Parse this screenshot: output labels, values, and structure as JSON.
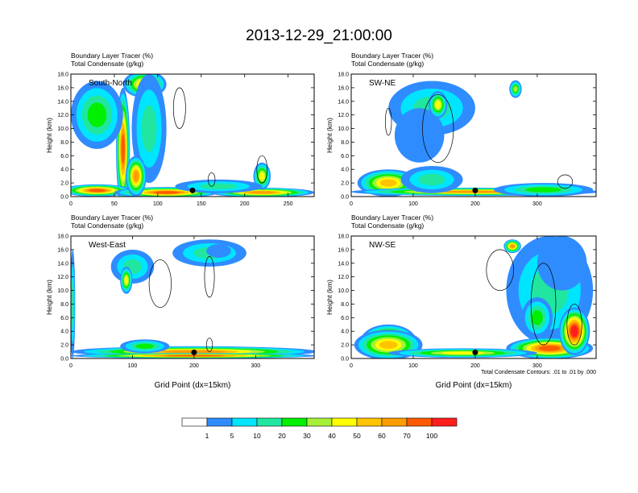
{
  "title": "2013-12-29_21:00:00",
  "colors": {
    "levels": [
      "1",
      "5",
      "10",
      "20",
      "30",
      "40",
      "50",
      "60",
      "70",
      "100"
    ],
    "palette": [
      "#ffffff",
      "#2f8cff",
      "#00e5ff",
      "#20e6a0",
      "#00f000",
      "#a6f03a",
      "#ffff00",
      "#ffc400",
      "#ff9c00",
      "#ff5a00",
      "#ff1e1e"
    ]
  },
  "footnote": "Total Condensate Contours: .01 to .01 by .000",
  "chart_data": [
    {
      "type": "heatmap",
      "subtitle1": "Boundary Layer Tracer    (%)",
      "subtitle2": "Total Condensate    (g/kg)",
      "panel_label": "South-North",
      "ylabel": "Height (km)",
      "xlabel": "",
      "xlim": [
        0,
        280
      ],
      "ylim": [
        0,
        18
      ],
      "xticks": [
        0,
        50,
        100,
        150,
        200,
        250
      ],
      "yticks": [
        "0.0",
        "2.0",
        "4.0",
        "6.0",
        "8.0",
        "10.0",
        "12.0",
        "14.0",
        "16.0",
        "18.0"
      ],
      "marker_x": 140,
      "blobs": [
        {
          "x": 60,
          "y": 7,
          "rx": 8,
          "ry": 9,
          "level": 9
        },
        {
          "x": 30,
          "y": 0.9,
          "rx": 40,
          "ry": 0.9,
          "level": 9
        },
        {
          "x": 110,
          "y": 0.6,
          "rx": 60,
          "ry": 0.8,
          "level": 9
        },
        {
          "x": 220,
          "y": 0.6,
          "rx": 60,
          "ry": 0.7,
          "level": 8
        },
        {
          "x": 85,
          "y": 16.5,
          "rx": 25,
          "ry": 2,
          "level": 7
        },
        {
          "x": 30,
          "y": 12,
          "rx": 30,
          "ry": 5,
          "level": 4
        },
        {
          "x": 90,
          "y": 10,
          "rx": 20,
          "ry": 8,
          "level": 3
        },
        {
          "x": 75,
          "y": 3,
          "rx": 12,
          "ry": 3,
          "level": 8
        },
        {
          "x": 220,
          "y": 3,
          "rx": 10,
          "ry": 2,
          "level": 6
        },
        {
          "x": 170,
          "y": 1.5,
          "rx": 50,
          "ry": 1,
          "level": 3
        }
      ],
      "contours": [
        {
          "x": 125,
          "y": 13,
          "rx": 7,
          "ry": 3
        },
        {
          "x": 162,
          "y": 2.5,
          "rx": 4,
          "ry": 1
        },
        {
          "x": 220,
          "y": 4,
          "rx": 6,
          "ry": 2
        }
      ]
    },
    {
      "type": "heatmap",
      "subtitle1": "Boundary Layer Tracer    (%)",
      "subtitle2": "Total Condensate    (g/kg)",
      "panel_label": "SW-NE",
      "ylabel": "Height (km)",
      "xlabel": "",
      "xlim": [
        0,
        395
      ],
      "ylim": [
        0,
        18
      ],
      "xticks": [
        0,
        100,
        200,
        300
      ],
      "yticks": [
        "0.0",
        "2.0",
        "4.0",
        "6.0",
        "8.0",
        "10.0",
        "12.0",
        "14.0",
        "16.0",
        "18.0"
      ],
      "marker_x": 200,
      "blobs": [
        {
          "x": 130,
          "y": 13,
          "rx": 70,
          "ry": 4,
          "level": 3
        },
        {
          "x": 110,
          "y": 9,
          "rx": 40,
          "ry": 4,
          "level": 1
        },
        {
          "x": 60,
          "y": 2,
          "rx": 50,
          "ry": 2,
          "level": 7
        },
        {
          "x": 200,
          "y": 0.7,
          "rx": 200,
          "ry": 0.6,
          "level": 8
        },
        {
          "x": 310,
          "y": 1,
          "rx": 80,
          "ry": 1,
          "level": 4
        },
        {
          "x": 265,
          "y": 15.8,
          "rx": 10,
          "ry": 1.3,
          "level": 5
        },
        {
          "x": 130,
          "y": 2.5,
          "rx": 50,
          "ry": 2,
          "level": 3
        },
        {
          "x": 140,
          "y": 13.5,
          "rx": 15,
          "ry": 2,
          "level": 6
        }
      ],
      "contours": [
        {
          "x": 60,
          "y": 11,
          "rx": 5,
          "ry": 2
        },
        {
          "x": 140,
          "y": 10,
          "rx": 25,
          "ry": 5
        },
        {
          "x": 345,
          "y": 2.2,
          "rx": 12,
          "ry": 1
        }
      ]
    },
    {
      "type": "heatmap",
      "subtitle1": "Boundary Layer Tracer    (%)",
      "subtitle2": "Total Condensate    (g/kg)",
      "panel_label": "West-East",
      "ylabel": "Height (km)",
      "xlabel": "Grid Point (dx=15km)",
      "xlim": [
        0,
        395
      ],
      "ylim": [
        0,
        18
      ],
      "xticks": [
        0,
        100,
        200,
        300
      ],
      "yticks": [
        "0.0",
        "2.0",
        "4.0",
        "6.0",
        "8.0",
        "10.0",
        "12.0",
        "14.0",
        "16.0",
        "18.0"
      ],
      "marker_x": 200,
      "blobs": [
        {
          "x": 100,
          "y": 13.5,
          "rx": 35,
          "ry": 2.5,
          "level": 3
        },
        {
          "x": 225,
          "y": 15.5,
          "rx": 60,
          "ry": 2,
          "level": 3
        },
        {
          "x": 200,
          "y": 1,
          "rx": 200,
          "ry": 0.8,
          "level": 8
        },
        {
          "x": 200,
          "y": 0.4,
          "rx": 200,
          "ry": 0.4,
          "level": 9
        },
        {
          "x": 120,
          "y": 1.8,
          "rx": 40,
          "ry": 1,
          "level": 4
        },
        {
          "x": 3,
          "y": 8,
          "rx": 4,
          "ry": 8,
          "level": 3
        },
        {
          "x": 90,
          "y": 11.5,
          "rx": 10,
          "ry": 2,
          "level": 6
        },
        {
          "x": 240,
          "y": 15.8,
          "rx": 20,
          "ry": 1,
          "level": 1
        }
      ],
      "contours": [
        {
          "x": 145,
          "y": 11,
          "rx": 18,
          "ry": 3.5
        },
        {
          "x": 225,
          "y": 12,
          "rx": 8,
          "ry": 3
        },
        {
          "x": 225,
          "y": 2,
          "rx": 5,
          "ry": 1
        }
      ]
    },
    {
      "type": "heatmap",
      "subtitle1": "Boundary Layer Tracer    (%)",
      "subtitle2": "Total Condensate    (g/kg)",
      "panel_label": "NW-SE",
      "ylabel": "Height (km)",
      "xlabel": "Grid Point (dx=15km)",
      "xlim": [
        0,
        395
      ],
      "ylim": [
        0,
        18
      ],
      "xticks": [
        0,
        100,
        200,
        300
      ],
      "yticks": [
        "0.0",
        "2.0",
        "4.0",
        "6.0",
        "8.0",
        "10.0",
        "12.0",
        "14.0",
        "16.0",
        "18.0"
      ],
      "marker_x": 200,
      "blobs": [
        {
          "x": 60,
          "y": 2.5,
          "rx": 45,
          "ry": 2.5,
          "level": 9
        },
        {
          "x": 60,
          "y": 2,
          "rx": 55,
          "ry": 2.2,
          "level": 7
        },
        {
          "x": 320,
          "y": 10,
          "rx": 70,
          "ry": 8,
          "level": 3
        },
        {
          "x": 340,
          "y": 14,
          "rx": 40,
          "ry": 4,
          "level": 1
        },
        {
          "x": 320,
          "y": 1.5,
          "rx": 70,
          "ry": 1.6,
          "level": 9
        },
        {
          "x": 360,
          "y": 4,
          "rx": 25,
          "ry": 3.5,
          "level": 10
        },
        {
          "x": 180,
          "y": 0.8,
          "rx": 120,
          "ry": 0.7,
          "level": 6
        },
        {
          "x": 260,
          "y": 16.5,
          "rx": 14,
          "ry": 1,
          "level": 8
        },
        {
          "x": 300,
          "y": 6,
          "rx": 25,
          "ry": 3,
          "level": 4
        }
      ],
      "contours": [
        {
          "x": 240,
          "y": 13,
          "rx": 22,
          "ry": 3
        },
        {
          "x": 310,
          "y": 8,
          "rx": 20,
          "ry": 6
        },
        {
          "x": 360,
          "y": 5,
          "rx": 12,
          "ry": 3
        }
      ]
    }
  ]
}
